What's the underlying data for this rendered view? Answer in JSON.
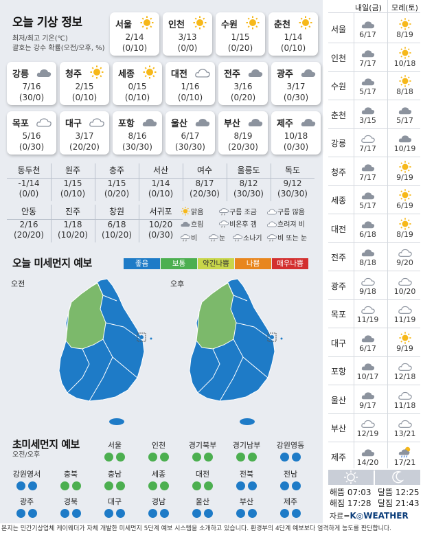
{
  "title": "오늘 기상 정보",
  "subtitle1": "최저/최고 기온(℃)",
  "subtitle2": "괄호는 강수 확률(오전/오후, %)",
  "cards": [
    {
      "name": "서울",
      "icon": "sun",
      "temp": "2/14",
      "rain": "(0/10)"
    },
    {
      "name": "인천",
      "icon": "sun",
      "temp": "3/13",
      "rain": "(0/0)"
    },
    {
      "name": "수원",
      "icon": "sun",
      "temp": "1/15",
      "rain": "(0/20)"
    },
    {
      "name": "춘천",
      "icon": "sun",
      "temp": "1/14",
      "rain": "(0/10)"
    },
    {
      "name": "강릉",
      "icon": "cloud",
      "temp": "7/16",
      "rain": "(30/0)"
    },
    {
      "name": "청주",
      "icon": "sun",
      "temp": "2/15",
      "rain": "(0/10)"
    },
    {
      "name": "세종",
      "icon": "sun",
      "temp": "0/15",
      "rain": "(0/10)"
    },
    {
      "name": "대전",
      "icon": "cloud-light",
      "temp": "1/16",
      "rain": "(0/10)"
    },
    {
      "name": "전주",
      "icon": "cloud",
      "temp": "3/16",
      "rain": "(0/20)"
    },
    {
      "name": "광주",
      "icon": "cloud",
      "temp": "3/17",
      "rain": "(0/30)"
    },
    {
      "name": "목포",
      "icon": "cloud-light",
      "temp": "5/16",
      "rain": "(0/30)"
    },
    {
      "name": "대구",
      "icon": "cloud-light",
      "temp": "3/17",
      "rain": "(20/20)"
    },
    {
      "name": "포항",
      "icon": "cloud",
      "temp": "8/16",
      "rain": "(30/30)"
    },
    {
      "name": "울산",
      "icon": "cloud",
      "temp": "6/17",
      "rain": "(30/30)"
    },
    {
      "name": "부산",
      "icon": "cloud",
      "temp": "8/19",
      "rain": "(20/30)"
    },
    {
      "name": "제주",
      "icon": "cloud",
      "temp": "10/18",
      "rain": "(0/30)"
    }
  ],
  "table1": [
    {
      "name": "동두천",
      "temp": "-1/14",
      "rain": "(0/0)"
    },
    {
      "name": "원주",
      "temp": "1/15",
      "rain": "(0/10)"
    },
    {
      "name": "충주",
      "temp": "1/15",
      "rain": "(0/20)"
    },
    {
      "name": "서산",
      "temp": "1/14",
      "rain": "(0/10)"
    },
    {
      "name": "여수",
      "temp": "8/17",
      "rain": "(20/30)"
    },
    {
      "name": "울릉도",
      "temp": "8/12",
      "rain": "(30/30)"
    },
    {
      "name": "독도",
      "temp": "9/12",
      "rain": "(30/30)"
    }
  ],
  "table2": [
    {
      "name": "안동",
      "temp": "2/16",
      "rain": "(20/20)"
    },
    {
      "name": "진주",
      "temp": "1/18",
      "rain": "(10/20)"
    },
    {
      "name": "창원",
      "temp": "6/18",
      "rain": "(10/20)"
    },
    {
      "name": "서귀포",
      "temp": "10/20",
      "rain": "(0/30)"
    }
  ],
  "legend": {
    "clear": "맑음",
    "partly": "구름 조금",
    "mostly": "구름 많음",
    "overcast": "흐림",
    "clearing": "비온후 갬",
    "rainy_cloudy": "흐려져 비",
    "rain": "비",
    "snow": "눈",
    "shower": "소나기",
    "rain_or_snow": "비 또는 눈"
  },
  "pm_title": "오늘 미세먼지 예보",
  "pm_levels": [
    {
      "label": "좋음",
      "color": "#1e7bc7"
    },
    {
      "label": "보통",
      "color": "#4caf50"
    },
    {
      "label": "약간나쁨",
      "color": "#c8d64a"
    },
    {
      "label": "나쁨",
      "color": "#e8861d"
    },
    {
      "label": "매우나쁨",
      "color": "#d32f2f"
    }
  ],
  "map_am": "오전",
  "map_pm": "오후",
  "ufd_title": "초미세먼지 예보",
  "ufd_sub": "오전/오후",
  "ufd": [
    {
      "name": "서울",
      "am": "g",
      "pm": "g"
    },
    {
      "name": "인천",
      "am": "g",
      "pm": "g"
    },
    {
      "name": "경기북부",
      "am": "g",
      "pm": "g"
    },
    {
      "name": "경기남부",
      "am": "g",
      "pm": "g"
    },
    {
      "name": "강원영동",
      "am": "b",
      "pm": "b"
    },
    {
      "name": "강원영서",
      "am": "b",
      "pm": "b"
    },
    {
      "name": "충북",
      "am": "g",
      "pm": "g"
    },
    {
      "name": "충남",
      "am": "g",
      "pm": "g"
    },
    {
      "name": "세종",
      "am": "g",
      "pm": "g"
    },
    {
      "name": "대전",
      "am": "g",
      "pm": "g"
    },
    {
      "name": "전북",
      "am": "b",
      "pm": "b"
    },
    {
      "name": "전남",
      "am": "b",
      "pm": "b"
    },
    {
      "name": "광주",
      "am": "b",
      "pm": "b"
    },
    {
      "name": "경북",
      "am": "b",
      "pm": "b"
    },
    {
      "name": "대구",
      "am": "b",
      "pm": "b"
    },
    {
      "name": "경남",
      "am": "b",
      "pm": "b"
    },
    {
      "name": "울산",
      "am": "b",
      "pm": "b"
    },
    {
      "name": "부산",
      "am": "b",
      "pm": "b"
    },
    {
      "name": "제주",
      "am": "b",
      "pm": "b"
    }
  ],
  "forecast_head": [
    "내일(금)",
    "모레(토)"
  ],
  "forecast": [
    {
      "name": "서울",
      "d1_icon": "cloud",
      "d1": "6/17",
      "d2_icon": "sun",
      "d2": "8/19"
    },
    {
      "name": "인천",
      "d1_icon": "cloud",
      "d1": "7/17",
      "d2_icon": "sun",
      "d2": "10/18"
    },
    {
      "name": "수원",
      "d1_icon": "cloud",
      "d1": "5/17",
      "d2_icon": "sun",
      "d2": "8/18"
    },
    {
      "name": "춘천",
      "d1_icon": "cloud",
      "d1": "3/15",
      "d2_icon": "cloud",
      "d2": "5/17"
    },
    {
      "name": "강릉",
      "d1_icon": "cloud-light",
      "d1": "7/17",
      "d2_icon": "cloud",
      "d2": "10/19"
    },
    {
      "name": "청주",
      "d1_icon": "cloud",
      "d1": "7/17",
      "d2_icon": "sun",
      "d2": "9/19"
    },
    {
      "name": "세종",
      "d1_icon": "cloud",
      "d1": "5/17",
      "d2_icon": "sun",
      "d2": "6/19"
    },
    {
      "name": "대전",
      "d1_icon": "cloud",
      "d1": "6/18",
      "d2_icon": "sun",
      "d2": "8/19"
    },
    {
      "name": "전주",
      "d1_icon": "cloud",
      "d1": "8/18",
      "d2_icon": "cloud-light",
      "d2": "9/20"
    },
    {
      "name": "광주",
      "d1_icon": "cloud-light",
      "d1": "9/18",
      "d2_icon": "cloud-light",
      "d2": "10/20"
    },
    {
      "name": "목포",
      "d1_icon": "cloud-light",
      "d1": "11/19",
      "d2_icon": "cloud-light",
      "d2": "11/19"
    },
    {
      "name": "대구",
      "d1_icon": "cloud",
      "d1": "6/17",
      "d2_icon": "sun",
      "d2": "9/19"
    },
    {
      "name": "포항",
      "d1_icon": "cloud",
      "d1": "10/17",
      "d2_icon": "cloud-light",
      "d2": "12/18"
    },
    {
      "name": "울산",
      "d1_icon": "cloud",
      "d1": "9/17",
      "d2_icon": "cloud-light",
      "d2": "11/18"
    },
    {
      "name": "부산",
      "d1_icon": "cloud-light",
      "d1": "12/19",
      "d2_icon": "cloud-light",
      "d2": "13/21"
    },
    {
      "name": "제주",
      "d1_icon": "cloud",
      "d1": "14/20",
      "d2_icon": "sun-cloud-rain",
      "d2": "17/21"
    }
  ],
  "sun": {
    "rise_label": "해뜸",
    "rise": "07:03",
    "set_label": "해짐",
    "set": "17:28"
  },
  "moon": {
    "rise_label": "달뜸",
    "rise": "12:25",
    "set_label": "달짐",
    "set": "21:43"
  },
  "source_prefix": "자료=",
  "source_brand": "K◎WEATHER",
  "footer": "본지는 민간기상업체 케이웨더가 자체 개발한 미세먼지 5단계 예보 시스템을 소개하고 있습니다. 환경부의 4단계 예보보다 엄격하게 농도를 판단합니다."
}
